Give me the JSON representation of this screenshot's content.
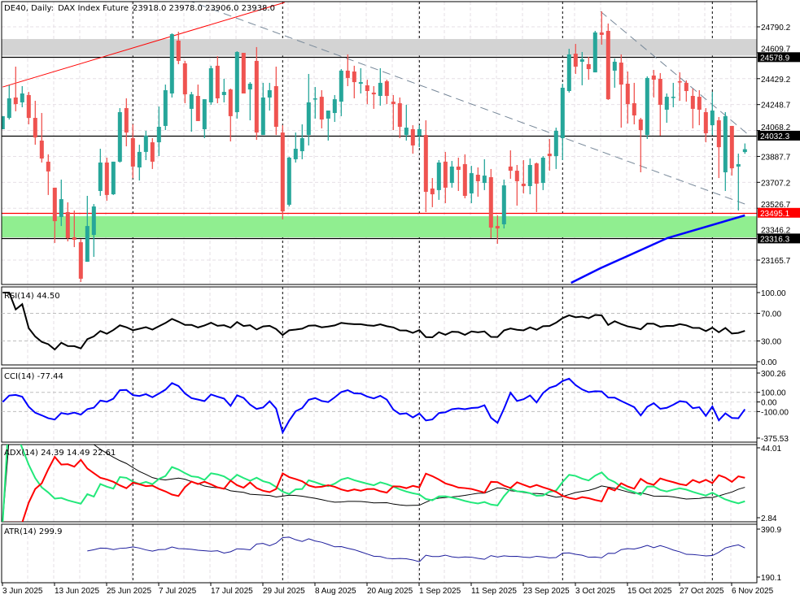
{
  "header": {
    "symbol": "DE40",
    "timeframe": "Daily:",
    "description": "DAX Index Future",
    "ohlc": "23918.0 23978.0 23906.0 23938.0"
  },
  "colors": {
    "bull": "#26a69a",
    "bear": "#ef5350",
    "resistance_zone": "#d3d3d3",
    "support_zone": "#90ee90",
    "ma": "#0000ff",
    "rsi": "#000000",
    "cci": "#0000ff",
    "adx": "#000000",
    "plus_di": "#22e87a",
    "minus_di": "#ff0000",
    "atr": "#1c1c9c"
  },
  "chart_data": {
    "type": "candlestick",
    "title": "DE40, Daily: DAX Index Future",
    "ylim": [
      23165.7,
      24790.2
    ],
    "y_ticks": [
      "24790.2",
      "24609.7",
      "24429.2",
      "24248.7",
      "24068.2",
      "23887.7",
      "23707.2",
      "23526.7",
      "23346.2",
      "23165.7"
    ],
    "x_tick_labels": [
      "3 Jun 2025",
      "13 Jun 2025",
      "25 Jun 2025",
      "7 Jul 2025",
      "17 Jul 2025",
      "29 Jul 2025",
      "8 Aug 2025",
      "20 Aug 2025",
      "1 Sep 2025",
      "11 Sep 2025",
      "23 Sep 2025",
      "3 Oct 2025",
      "15 Oct 2025",
      "27 Oct 2025",
      "6 Nov 2025"
    ],
    "ohlc_fields": [
      "open",
      "high",
      "low",
      "close"
    ],
    "candles": [
      [
        24077,
        24168,
        24077,
        24168
      ],
      [
        24156,
        24383,
        24145,
        24292
      ],
      [
        24298,
        24513,
        24202,
        24252
      ],
      [
        24264,
        24377,
        24230,
        24326
      ],
      [
        24315,
        24337,
        24111,
        24156
      ],
      [
        24156,
        24275,
        23969,
        24020
      ],
      [
        23998,
        24190,
        23845,
        23873
      ],
      [
        23851,
        23902,
        23619,
        23783
      ],
      [
        23670,
        23670,
        23285,
        23437
      ],
      [
        23466,
        23726,
        23403,
        23590
      ],
      [
        23500,
        23568,
        23296,
        23319
      ],
      [
        23324,
        23511,
        23256,
        23307
      ],
      [
        23290,
        23313,
        23013,
        23036
      ],
      [
        23154,
        23613,
        23154,
        23403
      ],
      [
        23341,
        23556,
        23188,
        23539
      ],
      [
        23647,
        23941,
        23613,
        23845
      ],
      [
        23845,
        23879,
        23579,
        23619
      ],
      [
        23624,
        23851,
        23619,
        23851
      ],
      [
        23851,
        24224,
        23845,
        24196
      ],
      [
        24224,
        24292,
        23958,
        24054
      ],
      [
        24015,
        24111,
        23737,
        23817
      ],
      [
        23811,
        23969,
        23720,
        23919
      ],
      [
        23919,
        24066,
        23862,
        24032
      ],
      [
        23986,
        24015,
        23800,
        23851
      ],
      [
        23986,
        24235,
        23890,
        24094
      ],
      [
        24100,
        24388,
        24071,
        24349
      ],
      [
        24326,
        24745,
        24298,
        24739
      ],
      [
        24694,
        24756,
        24530,
        24553
      ],
      [
        24536,
        24553,
        24258,
        24320
      ],
      [
        24219,
        24337,
        24060,
        24320
      ],
      [
        24309,
        24388,
        24134,
        24134
      ],
      [
        24077,
        24286,
        24015,
        24286
      ],
      [
        24264,
        24519,
        24247,
        24502
      ],
      [
        24519,
        24586,
        24258,
        24292
      ],
      [
        24315,
        24428,
        24264,
        24337
      ],
      [
        24354,
        24360,
        23992,
        24168
      ],
      [
        24196,
        24620,
        24151,
        24615
      ],
      [
        24609,
        24609,
        24326,
        24326
      ],
      [
        24354,
        24405,
        24139,
        24394
      ],
      [
        24553,
        24649,
        24003,
        24054
      ],
      [
        24037,
        24400,
        24037,
        24298
      ],
      [
        24298,
        24400,
        24207,
        24349
      ],
      [
        24377,
        24513,
        24037,
        24094
      ],
      [
        24054,
        24105,
        23449,
        23505
      ],
      [
        23551,
        23885,
        23539,
        23879
      ],
      [
        23868,
        24054,
        23845,
        23941
      ],
      [
        23924,
        24111,
        23868,
        24015
      ],
      [
        24037,
        24462,
        23964,
        24264
      ],
      [
        24292,
        24371,
        24151,
        24292
      ],
      [
        24303,
        24349,
        24083,
        24145
      ],
      [
        24151,
        24207,
        23998,
        24207
      ],
      [
        24190,
        24315,
        24128,
        24286
      ],
      [
        24269,
        24496,
        24168,
        24485
      ],
      [
        24485,
        24598,
        24377,
        24434
      ],
      [
        24479,
        24519,
        24292,
        24405
      ],
      [
        24394,
        24502,
        24326,
        24405
      ],
      [
        24383,
        24422,
        24252,
        24343
      ],
      [
        24332,
        24377,
        24219,
        24320
      ],
      [
        24309,
        24502,
        24241,
        24400
      ],
      [
        24411,
        24422,
        24252,
        24309
      ],
      [
        24269,
        24315,
        24071,
        24252
      ],
      [
        24258,
        24298,
        24015,
        24094
      ],
      [
        24037,
        24247,
        23998,
        24088
      ],
      [
        24077,
        24105,
        23907,
        23964
      ],
      [
        24032,
        24105,
        23952,
        24077
      ],
      [
        24037,
        24139,
        23500,
        23641
      ],
      [
        23664,
        23737,
        23534,
        23624
      ],
      [
        23653,
        23862,
        23585,
        23845
      ],
      [
        23851,
        23919,
        23562,
        23670
      ],
      [
        23703,
        23856,
        23670,
        23817
      ],
      [
        23817,
        23879,
        23647,
        23794
      ],
      [
        23834,
        23902,
        23596,
        23613
      ],
      [
        23630,
        23822,
        23562,
        23771
      ],
      [
        23760,
        23811,
        23607,
        23715
      ],
      [
        23703,
        23868,
        23653,
        23754
      ],
      [
        23743,
        23800,
        23319,
        23392
      ],
      [
        23403,
        23477,
        23279,
        23386
      ],
      [
        23415,
        23726,
        23386,
        23686
      ],
      [
        23817,
        23930,
        23732,
        23788
      ],
      [
        23788,
        23828,
        23545,
        23715
      ],
      [
        23698,
        23862,
        23630,
        23681
      ],
      [
        23681,
        23873,
        23624,
        23828
      ],
      [
        23839,
        23845,
        23500,
        23698
      ],
      [
        23703,
        23890,
        23653,
        23879
      ],
      [
        23907,
        24009,
        23788,
        23890
      ],
      [
        23890,
        24088,
        23800,
        24066
      ],
      [
        24015,
        24394,
        23862,
        24366
      ],
      [
        24343,
        24637,
        24332,
        24598
      ],
      [
        24603,
        24671,
        24462,
        24513
      ],
      [
        24547,
        24615,
        24383,
        24564
      ],
      [
        24530,
        24581,
        24422,
        24496
      ],
      [
        24473,
        24762,
        24473,
        24751
      ],
      [
        24751,
        24898,
        24666,
        24734
      ],
      [
        24762,
        24813,
        24281,
        24286
      ],
      [
        24485,
        24569,
        24366,
        24547
      ],
      [
        24541,
        24598,
        24088,
        24388
      ],
      [
        24394,
        24479,
        24117,
        24252
      ],
      [
        24258,
        24400,
        24111,
        24173
      ],
      [
        24145,
        24156,
        23777,
        24071
      ],
      [
        24037,
        24445,
        24009,
        24434
      ],
      [
        24451,
        24490,
        24298,
        24422
      ],
      [
        24428,
        24468,
        24032,
        24247
      ],
      [
        24213,
        24326,
        24122,
        24303
      ],
      [
        24303,
        24400,
        24230,
        24303
      ],
      [
        24411,
        24473,
        24275,
        24405
      ],
      [
        24400,
        24417,
        24269,
        24343
      ],
      [
        24309,
        24360,
        24083,
        24219
      ],
      [
        24303,
        24349,
        24105,
        24213
      ],
      [
        24196,
        24224,
        23986,
        24049
      ],
      [
        24105,
        24337,
        24037,
        24207
      ],
      [
        24139,
        24162,
        23737,
        23952
      ],
      [
        23777,
        24196,
        23647,
        24168
      ],
      [
        24100,
        24100,
        23754,
        23805
      ],
      [
        23817,
        23907,
        23511,
        23834
      ],
      [
        23918,
        23978,
        23906,
        23938
      ]
    ],
    "horizontal_levels": [
      {
        "price": 24578.9,
        "label": "24578.9",
        "color": "#000000"
      },
      {
        "price": 24032.3,
        "label": "24032.3",
        "color": "#000000"
      },
      {
        "price": 23495.1,
        "label": "23495.1",
        "color": "#ff0000"
      },
      {
        "price": 23316.3,
        "label": "23316.3",
        "color": "#000000"
      }
    ],
    "zones": [
      {
        "name": "resistance",
        "from": 24590,
        "to": 24705,
        "color": "#d3d3d3"
      },
      {
        "name": "support",
        "from": 23324,
        "to": 23471,
        "color": "#90ee90"
      }
    ],
    "trendlines": [
      {
        "name": "rising-red",
        "color": "#ff0000",
        "dashed": false,
        "points": [
          [
            0,
            24371
          ],
          [
            43.3,
            24960
          ]
        ]
      },
      {
        "name": "falling-grey-long",
        "color": "#778899",
        "dashed": true,
        "points": [
          [
            28.3,
            24977
          ],
          [
            114.3,
            23551
          ]
        ]
      },
      {
        "name": "falling-grey-short",
        "color": "#778899",
        "dashed": true,
        "points": [
          [
            91.8,
            24898
          ],
          [
            114.6,
            24037
          ]
        ]
      }
    ],
    "moving_average": [
      [
        87.3,
        23007
      ],
      [
        91.8,
        23109
      ],
      [
        102.1,
        23319
      ],
      [
        114,
        23477
      ]
    ]
  },
  "indicators": {
    "rsi": {
      "label": "RSI(14) 44.50",
      "range": [
        0,
        100
      ],
      "levels": [
        70,
        30
      ],
      "ticks": [
        "100.00",
        "70.00",
        "30.00",
        "0.00"
      ]
    },
    "cci": {
      "label": "CCI(14) -77.44",
      "range": [
        -375.53,
        300.26
      ],
      "levels": [
        100,
        0,
        -100
      ],
      "ticks": [
        "300.26",
        "100.00",
        "0.00",
        "-100.00",
        "-375.53"
      ]
    },
    "adx": {
      "label": "ADX(14) 24.39 14.49 22.61",
      "range": [
        2.84,
        44.01
      ],
      "ticks": [
        "44.01",
        "2.84"
      ]
    },
    "atr": {
      "label": "ATR(14) 299.9",
      "range": [
        190.1,
        390.9
      ],
      "ticks": [
        "390.9",
        "190.1"
      ]
    }
  }
}
